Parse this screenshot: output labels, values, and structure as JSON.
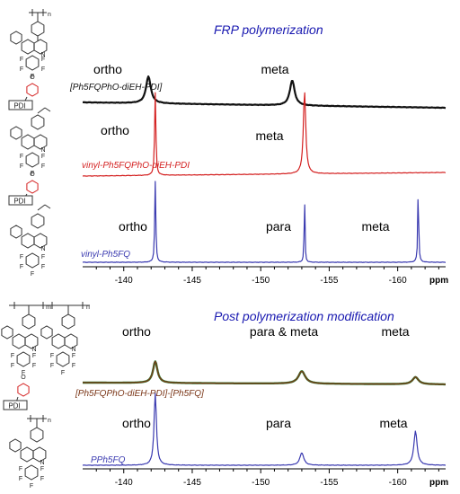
{
  "colors": {
    "black": "#111111",
    "red": "#d42020",
    "blue": "#3a3ab0",
    "brown": "#7a3516",
    "green": "#2f7a2f",
    "title_blue": "#1818b0",
    "axis": "#000000"
  },
  "chart_data": [
    {
      "type": "line",
      "title": "FRP polymerization",
      "x_range": [
        -137.0,
        -163.5
      ],
      "x_ticks": [
        "-140",
        "-145",
        "-150",
        "-155",
        "-160"
      ],
      "x_unit": "ppm",
      "series": [
        {
          "name": "[Ph5FQPhO-diEH-PDI]",
          "color": "black",
          "peaks": [
            {
              "label": "ortho",
              "ppm": -141.8
            },
            {
              "label": "meta",
              "ppm": -152.3
            }
          ]
        },
        {
          "name": "vinyl-Ph5FQPhO-diEH-PDI",
          "color": "red",
          "peaks": [
            {
              "label": "ortho",
              "ppm": -142.3
            },
            {
              "label": "meta",
              "ppm": -153.2
            }
          ]
        },
        {
          "name": "vinyl-Ph5FQ",
          "color": "blue",
          "peaks": [
            {
              "label": "ortho",
              "ppm": -142.3
            },
            {
              "label": "para",
              "ppm": -153.2
            },
            {
              "label": "meta",
              "ppm": -161.5
            }
          ]
        }
      ]
    },
    {
      "type": "line",
      "title": "Post polymerization modification",
      "x_range": [
        -137.0,
        -163.5
      ],
      "x_ticks": [
        "-140",
        "-145",
        "-150",
        "-155",
        "-160"
      ],
      "x_unit": "ppm",
      "series": [
        {
          "name": "[Ph5FQPhO-diEH-PDI]-[Ph5FQ]",
          "color": "brown",
          "peaks": [
            {
              "label": "ortho",
              "ppm": -142.3
            },
            {
              "label": "para & meta",
              "ppm": -153.0
            },
            {
              "label": "meta",
              "ppm": -161.3
            }
          ]
        },
        {
          "name": "PPh5FQ",
          "color": "blue",
          "peaks": [
            {
              "label": "ortho",
              "ppm": -142.3
            },
            {
              "label": "para",
              "ppm": -153.0
            },
            {
              "label": "meta",
              "ppm": -161.3
            }
          ]
        }
      ]
    }
  ],
  "structures": {
    "pdi_label": "PDI",
    "n_label": "n",
    "m_label": "m",
    "f_label": "F",
    "n_atom_label": "N",
    "o_atom_label": "O"
  }
}
